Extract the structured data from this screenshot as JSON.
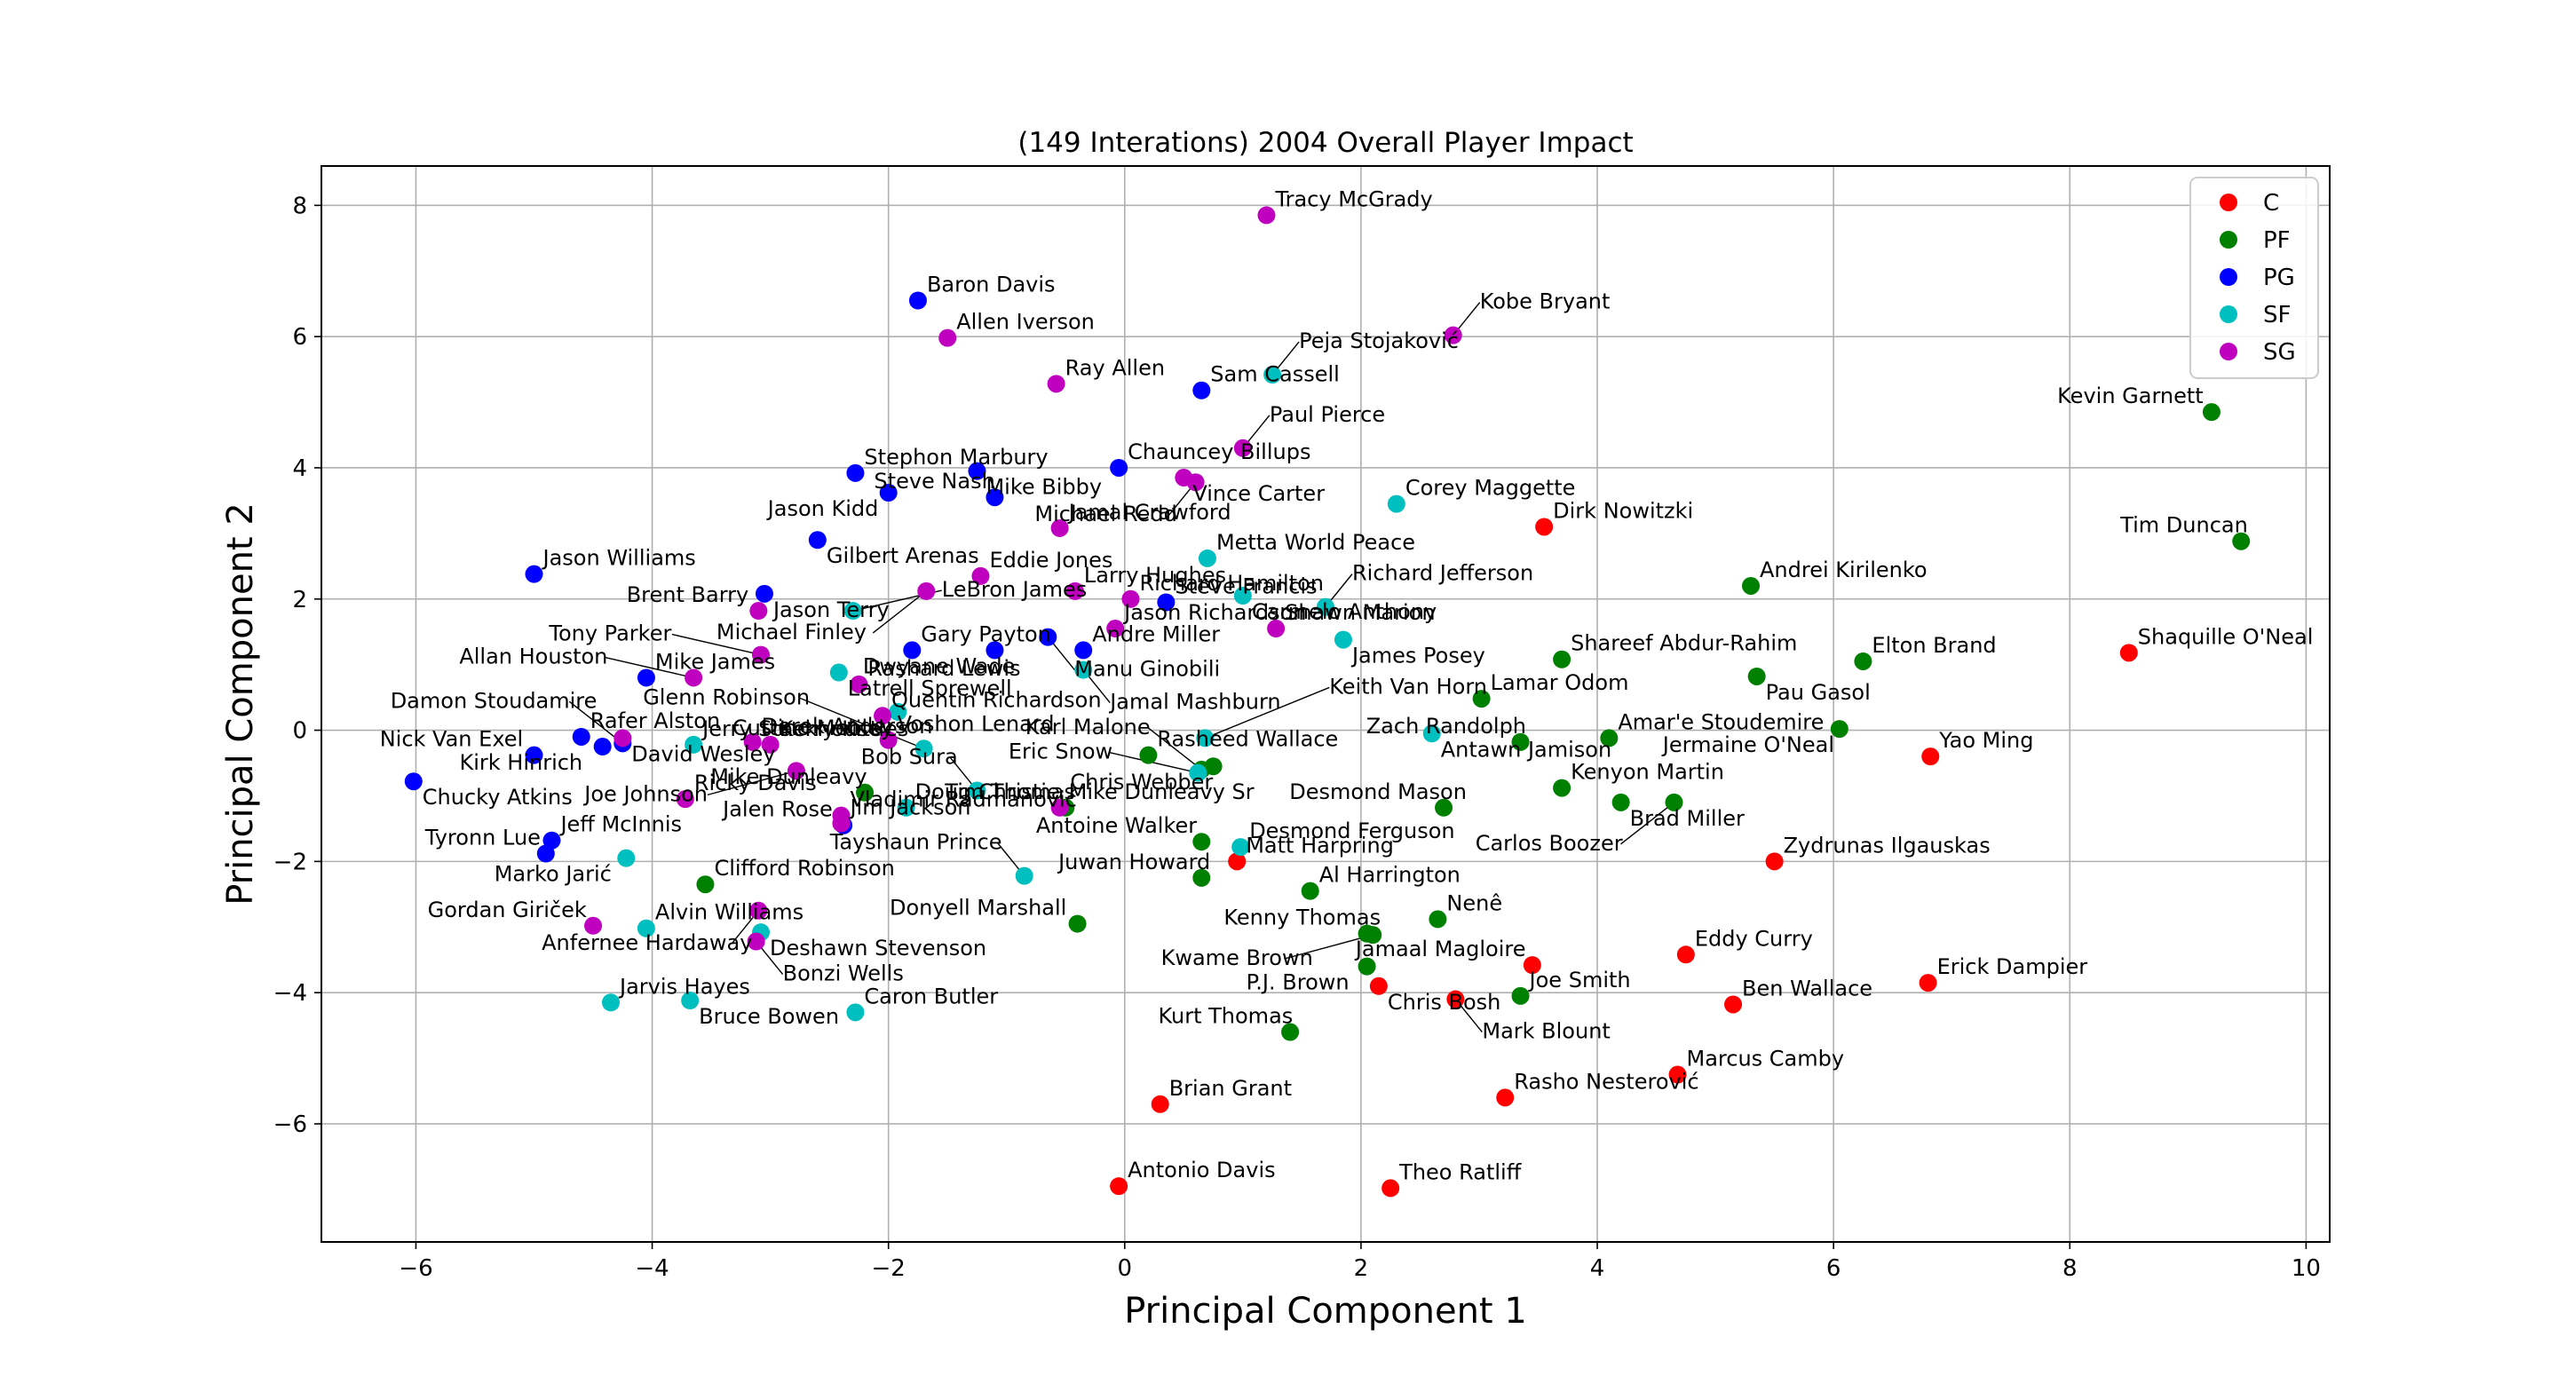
{
  "chart_data": {
    "type": "scatter",
    "title": "(149 Interations) 2004 Overall Player Impact",
    "xlabel": "Principal Component 1",
    "ylabel": "Principal Component 2",
    "xlim": [
      -6.8,
      10.2
    ],
    "ylim": [
      -7.8,
      8.6
    ],
    "xticks": [
      -6,
      -4,
      -2,
      0,
      2,
      4,
      6,
      8,
      10
    ],
    "yticks": [
      -6,
      -4,
      -2,
      0,
      2,
      4,
      6,
      8
    ],
    "xtick_labels": [
      "−6",
      "−4",
      "−2",
      "0",
      "2",
      "4",
      "6",
      "8",
      "10"
    ],
    "ytick_labels": [
      "−6",
      "−4",
      "−2",
      "0",
      "2",
      "4",
      "6",
      "8"
    ],
    "grid": true,
    "legend_position": "top-right",
    "series": [
      {
        "name": "C",
        "color": "#ff0000",
        "points": [
          {
            "label": "Shaquille O'Neal",
            "x": 8.5,
            "y": 1.18
          },
          {
            "label": "Dirk Nowitzki",
            "x": 3.55,
            "y": 3.1
          },
          {
            "label": "Yao Ming",
            "x": 6.82,
            "y": -0.4
          },
          {
            "label": "Zydrunas Ilgauskas",
            "x": 5.5,
            "y": -2.0
          },
          {
            "label": "Eddy Curry",
            "x": 4.75,
            "y": -3.42
          },
          {
            "label": "Jamaal Magloire",
            "x": 3.45,
            "y": -3.58
          },
          {
            "label": "Erick Dampier",
            "x": 6.8,
            "y": -3.85
          },
          {
            "label": "Ben Wallace",
            "x": 5.15,
            "y": -4.18
          },
          {
            "label": "Marcus Camby",
            "x": 4.68,
            "y": -5.25
          },
          {
            "label": "Rasho Nesterović",
            "x": 3.22,
            "y": -5.6
          },
          {
            "label": "Theo Ratliff",
            "x": 2.25,
            "y": -6.98
          },
          {
            "label": "Antonio Davis",
            "x": -0.05,
            "y": -6.95
          },
          {
            "label": "Brian Grant",
            "x": 0.3,
            "y": -5.7
          },
          {
            "label": "Chris Bosh",
            "x": 2.15,
            "y": -3.9
          },
          {
            "label": "Mark Blount",
            "x": 2.8,
            "y": -4.1
          },
          {
            "label": "Matt Harpring",
            "x": 0.95,
            "y": -2.0
          }
        ]
      },
      {
        "name": "PF",
        "color": "#008000",
        "points": [
          {
            "label": "Kevin Garnett",
            "x": 9.2,
            "y": 4.85
          },
          {
            "label": "Tim Duncan",
            "x": 9.45,
            "y": 2.88
          },
          {
            "label": "Andrei Kirilenko",
            "x": 5.3,
            "y": 2.2
          },
          {
            "label": "Elton Brand",
            "x": 6.25,
            "y": 1.05
          },
          {
            "label": "Shareef Abdur-Rahim",
            "x": 3.7,
            "y": 1.08
          },
          {
            "label": "Pau Gasol",
            "x": 5.35,
            "y": 0.82
          },
          {
            "label": "Lamar Odom",
            "x": 3.02,
            "y": 0.48
          },
          {
            "label": "Jermaine O'Neal",
            "x": 6.05,
            "y": 0.02
          },
          {
            "label": "Zach Randolph",
            "x": 3.35,
            "y": -0.18
          },
          {
            "label": "Amar'e Stoudemire",
            "x": 4.1,
            "y": -0.12
          },
          {
            "label": "Kenyon Martin",
            "x": 3.7,
            "y": -0.88
          },
          {
            "label": "Brad Miller",
            "x": 4.2,
            "y": -1.1
          },
          {
            "label": "Carlos Boozer",
            "x": 4.65,
            "y": -1.1
          },
          {
            "label": "Desmond Mason",
            "x": 2.7,
            "y": -1.18
          },
          {
            "label": "Rasheed Wallace",
            "x": 0.2,
            "y": -0.38
          },
          {
            "label": "Chris Webber",
            "x": 0.75,
            "y": -0.55
          },
          {
            "label": "Karl Malone",
            "x": 0.65,
            "y": -0.6
          },
          {
            "label": "Tim Thomas",
            "x": -0.5,
            "y": -1.18
          },
          {
            "label": "Mike Dunleavy",
            "x": -2.2,
            "y": -0.95
          },
          {
            "label": "Antoine Walker",
            "x": 0.65,
            "y": -1.7
          },
          {
            "label": "Juwan Howard",
            "x": 0.65,
            "y": -2.25
          },
          {
            "label": "Al Harrington",
            "x": 1.57,
            "y": -2.45
          },
          {
            "label": "Nenê",
            "x": 2.65,
            "y": -2.88
          },
          {
            "label": "Kenny Thomas",
            "x": 2.05,
            "y": -3.1
          },
          {
            "label": "P.J. Brown",
            "x": 2.05,
            "y": -3.6
          },
          {
            "label": "Joe Smith",
            "x": 3.35,
            "y": -4.05
          },
          {
            "label": "Kurt Thomas",
            "x": 1.4,
            "y": -4.6
          },
          {
            "label": "Donyell Marshall",
            "x": -0.4,
            "y": -2.95
          },
          {
            "label": "Clifford Robinson",
            "x": -3.55,
            "y": -2.35
          },
          {
            "label": "Kwame Brown",
            "x": 2.1,
            "y": -3.12
          }
        ]
      },
      {
        "name": "PG",
        "color": "#0000ff",
        "points": [
          {
            "label": "Baron Davis",
            "x": -1.75,
            "y": 6.55
          },
          {
            "label": "Sam Cassell",
            "x": 0.65,
            "y": 5.18
          },
          {
            "label": "Chauncey Billups",
            "x": -0.05,
            "y": 4.0
          },
          {
            "label": "Stephon Marbury",
            "x": -2.28,
            "y": 3.92
          },
          {
            "label": "Mike Bibby",
            "x": -1.25,
            "y": 3.95
          },
          {
            "label": "Steve Nash",
            "x": -1.1,
            "y": 3.55
          },
          {
            "label": "Jason Kidd",
            "x": -2.0,
            "y": 3.62
          },
          {
            "label": "Gilbert Arenas",
            "x": -2.6,
            "y": 2.9
          },
          {
            "label": "Jason Williams",
            "x": -5.0,
            "y": 2.38
          },
          {
            "label": "Jason Terry",
            "x": -3.05,
            "y": 2.08
          },
          {
            "label": "Steve Francis",
            "x": 0.35,
            "y": 1.95
          },
          {
            "label": "Gary Payton",
            "x": -1.8,
            "y": 1.22
          },
          {
            "label": "Andre Miller",
            "x": -0.35,
            "y": 1.22
          },
          {
            "label": "Manu Ginobili",
            "x": -0.65,
            "y": 1.42
          },
          {
            "label": "Dwyane Wade",
            "x": -1.1,
            "y": 1.22
          },
          {
            "label": "Mike James",
            "x": -4.05,
            "y": 0.8
          },
          {
            "label": "Rafer Alston",
            "x": -4.6,
            "y": -0.1
          },
          {
            "label": "Kirk Hinrich",
            "x": -4.42,
            "y": -0.25
          },
          {
            "label": "Nick Van Exel",
            "x": -5.0,
            "y": -0.38
          },
          {
            "label": "Damon Stoudamire",
            "x": -4.25,
            "y": -0.2
          },
          {
            "label": "Chucky Atkins",
            "x": -6.02,
            "y": -0.78
          },
          {
            "label": "Jeff McInnis",
            "x": -4.85,
            "y": -1.68
          },
          {
            "label": "Tyronn Lue",
            "x": -4.9,
            "y": -1.88
          },
          {
            "label": "Jalen Rose",
            "x": -2.38,
            "y": -1.45
          }
        ]
      },
      {
        "name": "SF",
        "color": "#00bfbf",
        "points": [
          {
            "label": "Peja Stojaković",
            "x": 1.25,
            "y": 5.42
          },
          {
            "label": "Corey Maggette",
            "x": 2.3,
            "y": 3.45
          },
          {
            "label": "Metta World Peace",
            "x": 0.7,
            "y": 2.62
          },
          {
            "label": "Carmelo Anthony",
            "x": 1.0,
            "y": 2.05
          },
          {
            "label": "Richard Jefferson",
            "x": 1.7,
            "y": 1.88
          },
          {
            "label": "James Posey",
            "x": 1.85,
            "y": 1.38
          },
          {
            "label": "LeBron James",
            "x": -2.3,
            "y": 1.82
          },
          {
            "label": "Latrell Sprewell",
            "x": -2.42,
            "y": 0.88
          },
          {
            "label": "Jamal Mashburn",
            "x": -0.35,
            "y": 0.92
          },
          {
            "label": "Antawn Jamison",
            "x": 2.6,
            "y": -0.05
          },
          {
            "label": "Keith Van Horn",
            "x": 0.68,
            "y": -0.12
          },
          {
            "label": "Cuttino Mobley",
            "x": -1.92,
            "y": 0.28
          },
          {
            "label": "Glenn Robinson",
            "x": -1.7,
            "y": -0.28
          },
          {
            "label": "Tayshaun Prince",
            "x": -0.85,
            "y": -2.22
          },
          {
            "label": "Eric Snow",
            "x": 0.62,
            "y": -0.65
          },
          {
            "label": "Doug Christie",
            "x": -1.85,
            "y": -1.18
          },
          {
            "label": "Bob Sura",
            "x": -1.25,
            "y": -0.92
          },
          {
            "label": "Desmond Ferguson",
            "x": 0.98,
            "y": -1.78
          },
          {
            "label": "Marko Jarić",
            "x": -4.22,
            "y": -1.95
          },
          {
            "label": "Alvin Williams",
            "x": -4.05,
            "y": -3.02
          },
          {
            "label": "Deshawn Stevenson",
            "x": -3.08,
            "y": -3.08
          },
          {
            "label": "Jarvis Hayes",
            "x": -4.35,
            "y": -4.15
          },
          {
            "label": "Bruce Bowen",
            "x": -3.68,
            "y": -4.12
          },
          {
            "label": "Caron Butler",
            "x": -2.28,
            "y": -4.3
          },
          {
            "label": "Jerry Stackhouse",
            "x": -3.65,
            "y": -0.22
          }
        ]
      },
      {
        "name": "SG",
        "color": "#bf00bf",
        "points": [
          {
            "label": "Tracy McGrady",
            "x": 1.2,
            "y": 7.85
          },
          {
            "label": "Kobe Bryant",
            "x": 2.78,
            "y": 6.02
          },
          {
            "label": "Allen Iverson",
            "x": -1.5,
            "y": 5.98
          },
          {
            "label": "Ray Allen",
            "x": -0.58,
            "y": 5.28
          },
          {
            "label": "Paul Pierce",
            "x": 1.0,
            "y": 4.3
          },
          {
            "label": "Vince Carter",
            "x": 0.5,
            "y": 3.85
          },
          {
            "label": "Michael Redd",
            "x": 0.6,
            "y": 3.78
          },
          {
            "label": "Jamal Crawford",
            "x": -0.55,
            "y": 3.08
          },
          {
            "label": "Eddie Jones",
            "x": -1.22,
            "y": 2.35
          },
          {
            "label": "Michael Finley",
            "x": -1.68,
            "y": 2.12
          },
          {
            "label": "Larry Hughes",
            "x": -0.42,
            "y": 2.12
          },
          {
            "label": "Richard Hamilton",
            "x": 0.05,
            "y": 2.0
          },
          {
            "label": "Jason Richardson",
            "x": -0.08,
            "y": 1.55
          },
          {
            "label": "Shawn Marion",
            "x": 1.28,
            "y": 1.55
          },
          {
            "label": "Brent Barry",
            "x": -3.1,
            "y": 1.82
          },
          {
            "label": "Tony Parker",
            "x": -3.08,
            "y": 1.15
          },
          {
            "label": "Allan Houston",
            "x": -3.65,
            "y": 0.8
          },
          {
            "label": "David Wesley",
            "x": -4.25,
            "y": -0.12
          },
          {
            "label": "Derek Anderson",
            "x": -3.15,
            "y": -0.18
          },
          {
            "label": "Rashard Lewis",
            "x": -2.25,
            "y": 0.7
          },
          {
            "label": "Quentin Richardson",
            "x": -2.05,
            "y": 0.22
          },
          {
            "label": "Kerry Kittles",
            "x": -3.0,
            "y": -0.22
          },
          {
            "label": "Voshon Lenard",
            "x": -2.0,
            "y": -0.15
          },
          {
            "label": "Joe Johnson",
            "x": -2.78,
            "y": -0.62
          },
          {
            "label": "Ricky Davis",
            "x": -3.72,
            "y": -1.05
          },
          {
            "label": "Vladimir Radmanović",
            "x": -2.4,
            "y": -1.3
          },
          {
            "label": "Mike Dunleavy Sr",
            "x": -0.55,
            "y": -1.18
          },
          {
            "label": "Jim Jackson",
            "x": -2.4,
            "y": -1.42
          },
          {
            "label": "Anfernee Hardaway",
            "x": -3.1,
            "y": -2.75
          },
          {
            "label": "Gordan Giriček",
            "x": -4.5,
            "y": -2.98
          },
          {
            "label": "Bonzi Wells",
            "x": -3.12,
            "y": -3.22
          }
        ]
      }
    ]
  }
}
